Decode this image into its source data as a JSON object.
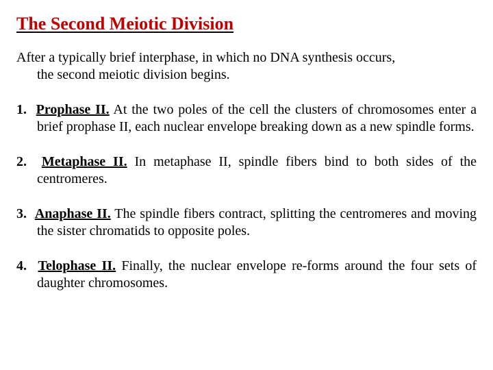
{
  "title": "The Second Meiotic Division",
  "intro_full": "After a typically brief interphase, in which no DNA synthesis occurs, the second meiotic division begins.",
  "phases": [
    {
      "num": "1.",
      "name": "Prophase II.",
      "desc": " At the two poles of the cell the clusters of chromosomes enter a brief prophase II, each nuclear envelope breaking down as a new spindle forms."
    },
    {
      "num": "2.",
      "name": "Metaphase II.",
      "desc": " In metaphase II, spindle fibers bind to both sides of the centromeres."
    },
    {
      "num": "3.",
      "name": "Anaphase II.",
      "desc": " The spindle fibers contract, splitting the centromeres and moving the sister chromatids to opposite poles."
    },
    {
      "num": "4.",
      "name": "Telophase II.",
      "desc": " Finally, the nuclear envelope re-forms around the four sets of daughter chromosomes."
    }
  ],
  "colors": {
    "title_color": "#c00000",
    "text_color": "#000000",
    "underline_color": "#000000",
    "background": "#ffffff"
  },
  "typography": {
    "font_family": "Times New Roman",
    "title_fontsize": 26,
    "body_fontsize": 20,
    "title_weight": "bold"
  }
}
